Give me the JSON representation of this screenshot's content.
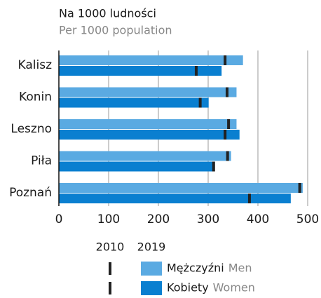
{
  "chart_data": {
    "type": "bar",
    "orientation": "horizontal",
    "title": "Na 1000 ludności",
    "subtitle": "Per 1000 population",
    "categories": [
      "Kalisz",
      "Konin",
      "Leszno",
      "Piła",
      "Poznań"
    ],
    "series": [
      {
        "name": "Mężczyźni",
        "name_en": "Men",
        "color": "#5aaae2",
        "values": [
          370,
          357,
          357,
          346,
          490
        ],
        "values_2010": [
          334,
          338,
          341,
          339,
          484
        ]
      },
      {
        "name": "Kobiety",
        "name_en": "Women",
        "color": "#0a7fd0",
        "values": [
          327,
          301,
          363,
          313,
          466
        ],
        "values_2010": [
          276,
          284,
          334,
          311,
          383
        ]
      }
    ],
    "legend_years": [
      "2010",
      "2019"
    ],
    "xlim": [
      0,
      500
    ],
    "xticks": [
      0,
      100,
      200,
      300,
      400,
      500
    ],
    "grid": true
  }
}
